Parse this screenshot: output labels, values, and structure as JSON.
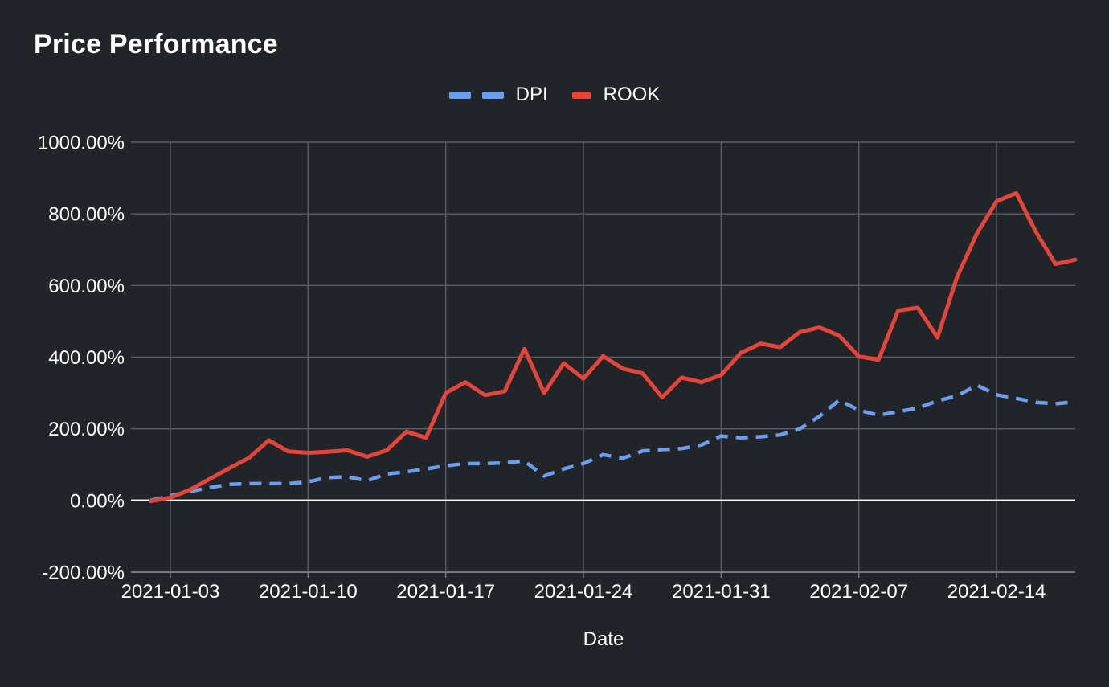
{
  "page": {
    "background": "#212429"
  },
  "header": {
    "title": "Price Performance"
  },
  "legend": [
    {
      "label": "DPI",
      "color": "#6d9eeb",
      "style": "dashed"
    },
    {
      "label": "ROOK",
      "color": "#e3453b",
      "style": "solid"
    }
  ],
  "colors": {
    "background": "#212429",
    "text": "#ffffff",
    "gridline": "#5a5e63",
    "zero_line": "#ffffff",
    "baseline": "#75787c",
    "dpi_blue": "#6d9eeb",
    "rook_red": "#e3453b"
  },
  "chart_data": {
    "type": "line",
    "title": "Price Performance",
    "xlabel": "Date",
    "ylabel": "",
    "unit": "percent",
    "grid": true,
    "legend_position": "top-center",
    "zero_line": true,
    "ylim": [
      -200,
      1000
    ],
    "y_tick_values": [
      -200,
      0,
      200,
      400,
      600,
      800,
      1000
    ],
    "y_tick_labels": [
      "-200.00%",
      "0.00%",
      "200.00%",
      "400.00%",
      "600.00%",
      "800.00%",
      "1000.00%"
    ],
    "x_range": [
      "2021-01-01",
      "2021-02-18"
    ],
    "x_tick_dates": [
      "2021-01-03",
      "2021-01-10",
      "2021-01-17",
      "2021-01-24",
      "2021-01-31",
      "2021-02-07",
      "2021-02-14"
    ],
    "x": [
      "2021-01-02",
      "2021-01-03",
      "2021-01-04",
      "2021-01-05",
      "2021-01-06",
      "2021-01-07",
      "2021-01-08",
      "2021-01-09",
      "2021-01-10",
      "2021-01-11",
      "2021-01-12",
      "2021-01-13",
      "2021-01-14",
      "2021-01-15",
      "2021-01-16",
      "2021-01-17",
      "2021-01-18",
      "2021-01-19",
      "2021-01-20",
      "2021-01-21",
      "2021-01-22",
      "2021-01-23",
      "2021-01-24",
      "2021-01-25",
      "2021-01-26",
      "2021-01-27",
      "2021-01-28",
      "2021-01-29",
      "2021-01-30",
      "2021-01-31",
      "2021-02-01",
      "2021-02-02",
      "2021-02-03",
      "2021-02-04",
      "2021-02-05",
      "2021-02-06",
      "2021-02-07",
      "2021-02-08",
      "2021-02-09",
      "2021-02-10",
      "2021-02-11",
      "2021-02-12",
      "2021-02-13",
      "2021-02-14",
      "2021-02-15",
      "2021-02-16",
      "2021-02-17",
      "2021-02-18"
    ],
    "series": [
      {
        "name": "DPI",
        "color": "#6d9eeb",
        "dash": true,
        "values": [
          0,
          13,
          25,
          36,
          45,
          47,
          47,
          47,
          52,
          64,
          66,
          55,
          74,
          80,
          88,
          97,
          103,
          103,
          105,
          110,
          68,
          88,
          103,
          128,
          118,
          138,
          142,
          145,
          155,
          180,
          175,
          178,
          183,
          200,
          235,
          280,
          252,
          238,
          248,
          258,
          278,
          292,
          322,
          295,
          285,
          274,
          270,
          276
        ]
      },
      {
        "name": "ROOK",
        "color": "#e3453b",
        "dash": false,
        "values": [
          -2,
          8,
          30,
          60,
          90,
          119,
          168,
          137,
          133,
          136,
          140,
          122,
          140,
          192,
          175,
          300,
          330,
          294,
          305,
          423,
          300,
          383,
          340,
          403,
          368,
          355,
          288,
          343,
          330,
          350,
          412,
          438,
          428,
          470,
          483,
          460,
          402,
          393,
          530,
          538,
          455,
          625,
          745,
          835,
          858,
          750,
          660,
          672
        ]
      }
    ]
  }
}
